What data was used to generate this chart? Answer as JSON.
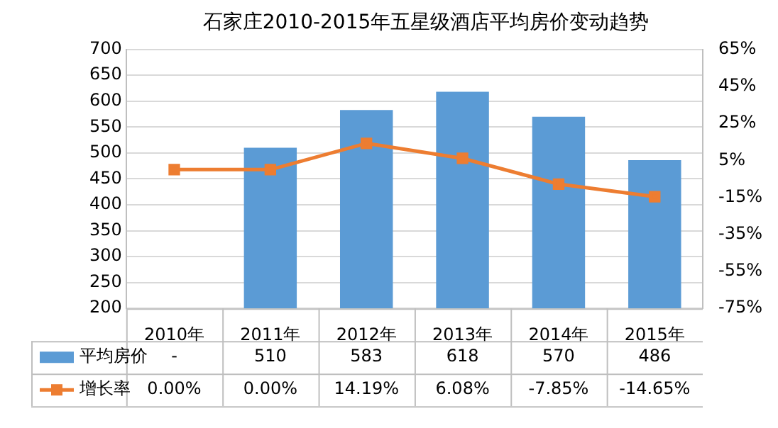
{
  "chart_data": {
    "type": "bar",
    "title": "石家庄2010-2015年五星级酒店平均房价变动趋势",
    "categories": [
      "2010年",
      "2011年",
      "2012年",
      "2013年",
      "2014年",
      "2015年"
    ],
    "series": [
      {
        "name": "平均房价",
        "color": "#5b9bd5",
        "values": [
          null,
          510,
          583,
          618,
          570,
          486
        ],
        "value_labels": [
          "-",
          "510",
          "583",
          "618",
          "570",
          "486"
        ]
      },
      {
        "name": "增长率",
        "type": "line",
        "axis": "y2",
        "color": "#ed7d31",
        "marker": "square",
        "values": [
          0.0,
          0.0,
          14.19,
          6.08,
          -7.85,
          -14.65
        ],
        "value_labels": [
          "0.00%",
          "0.00%",
          "14.19%",
          "6.08%",
          "-7.85%",
          "-14.65%"
        ]
      }
    ],
    "ylim": [
      200,
      700
    ],
    "yticks": [
      200,
      250,
      300,
      350,
      400,
      450,
      500,
      550,
      600,
      650,
      700
    ],
    "y2lim": [
      -75,
      65
    ],
    "y2ticks": [
      {
        "value": -75,
        "label": "-75%"
      },
      {
        "value": -55,
        "label": "-55%"
      },
      {
        "value": -35,
        "label": "-35%"
      },
      {
        "value": -15,
        "label": "-15%"
      },
      {
        "value": 5,
        "label": "5%"
      },
      {
        "value": 25,
        "label": "25%"
      },
      {
        "value": 45,
        "label": "45%"
      },
      {
        "value": 65,
        "label": "65%"
      }
    ],
    "grid": "y",
    "legend": "bottom"
  }
}
